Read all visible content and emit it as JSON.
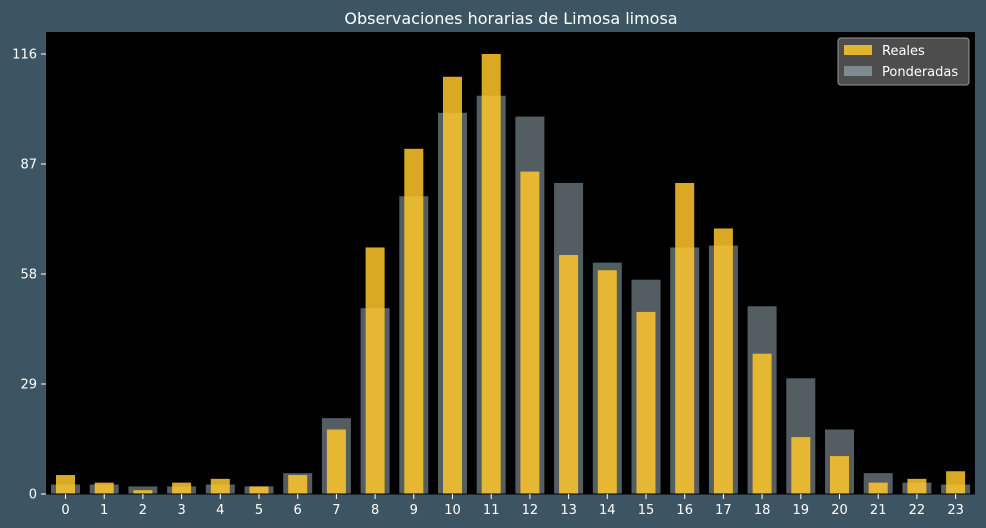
{
  "chart_data": {
    "type": "bar",
    "title": "Observaciones horarias de Limosa limosa",
    "xlabel": "",
    "ylabel": "",
    "categories": [
      "0",
      "1",
      "2",
      "3",
      "4",
      "5",
      "6",
      "7",
      "8",
      "9",
      "10",
      "11",
      "12",
      "13",
      "14",
      "15",
      "16",
      "17",
      "18",
      "19",
      "20",
      "21",
      "22",
      "23"
    ],
    "series": [
      {
        "name": "Reales",
        "color": "#ffc72a",
        "values": [
          5,
          3,
          1,
          3,
          4,
          2,
          5,
          17,
          65,
          91,
          110,
          116,
          85,
          63,
          59,
          48,
          82,
          70,
          37,
          15,
          10,
          3,
          4,
          6
        ]
      },
      {
        "name": "Ponderadas",
        "color": "#8a9ba3",
        "values": [
          2.5,
          2.5,
          2,
          2,
          2.5,
          2,
          5.5,
          20,
          49,
          78.5,
          100.5,
          105,
          99.5,
          82,
          61,
          56.5,
          65,
          65.5,
          49.5,
          30.5,
          17,
          5.5,
          3,
          2.5
        ]
      }
    ],
    "yticks": [
      0,
      29,
      58,
      87,
      116
    ],
    "ylim": [
      0,
      121.8
    ],
    "grid": false,
    "legend": "top-right",
    "background": "#000000",
    "figure_background": "#3d5563",
    "text_color": "#ffffff"
  }
}
